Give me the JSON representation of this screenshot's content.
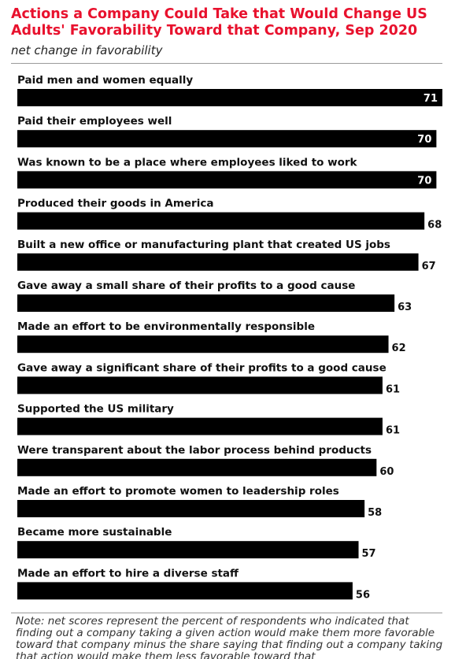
{
  "chart_data": {
    "type": "bar",
    "orientation": "horizontal",
    "title": "Actions a Company Could Take that Would Change US Adults' Favorability Toward that Company, Sep 2020",
    "subtitle": "net change in favorability",
    "categories": [
      "Paid men and women equally",
      "Paid their employees well",
      "Was known to be a place where employees liked to work",
      "Produced their goods in America",
      "Built a new office or manufacturing plant that created US jobs",
      "Gave away a small share of their profits to a good cause",
      "Made an effort to be environmentally responsible",
      "Gave away a significant share of their profits to a good cause",
      "Supported the US military",
      "Were transparent about the labor process behind products",
      "Made an effort to promote women to leadership roles",
      "Became more sustainable",
      "Made an effort to hire a diverse staff"
    ],
    "values": [
      71,
      70,
      70,
      68,
      67,
      63,
      62,
      61,
      61,
      60,
      58,
      57,
      56
    ],
    "xlim": [
      0,
      71
    ],
    "bar_color": "#000000",
    "title_color": "#e8112d",
    "grid": false,
    "legend": "none"
  },
  "note": "Note: net scores represent the percent of respondents who indicated that finding out a company taking a given action would make them more favorable toward that company minus the share saying that finding out a company taking that action would make them less favorable toward that"
}
